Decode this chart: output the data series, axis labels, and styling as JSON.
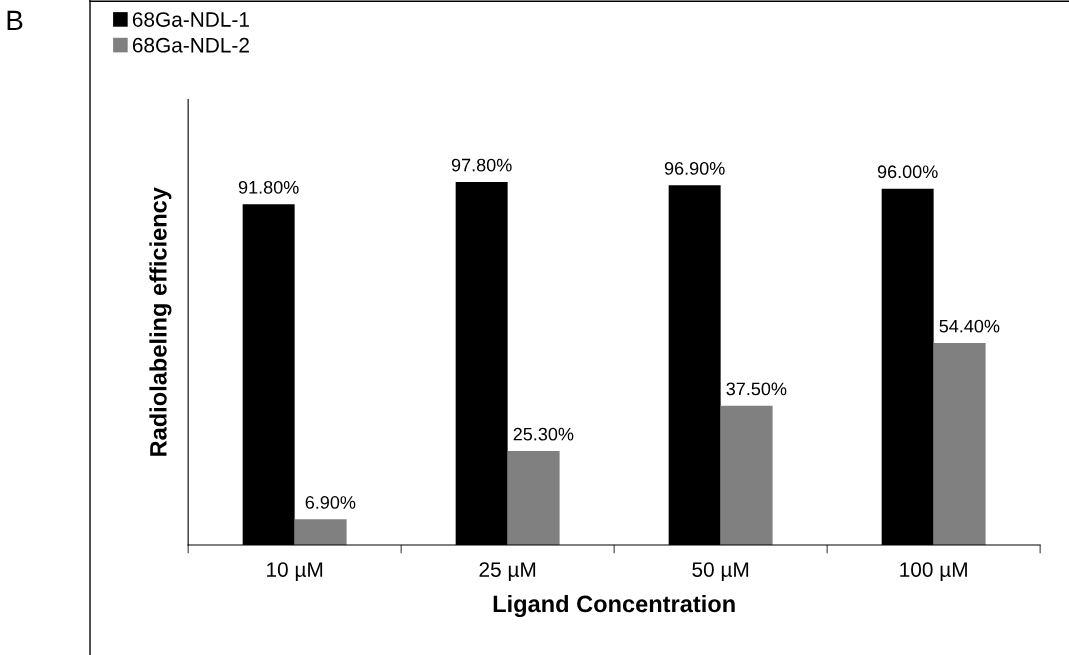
{
  "chart_data": {
    "type": "bar",
    "xlabel": "Ligand Concentration",
    "ylabel": "Radiolabeling efficiency",
    "categories": [
      "10 µM",
      "25 µM",
      "50 µM",
      "100 µM"
    ],
    "series": [
      {
        "name": "68Ga-NDL-1",
        "color": "#000000",
        "values": [
          91.8,
          97.8,
          96.9,
          96.0
        ],
        "value_labels": [
          "91.80%",
          "97.80%",
          "96.90%",
          "96.00%"
        ]
      },
      {
        "name": "68Ga-NDL-2",
        "color": "#808080",
        "values": [
          6.9,
          25.3,
          37.5,
          54.4
        ],
        "value_labels": [
          "6.90%",
          "25.30%",
          "37.50%",
          "54.40%"
        ]
      }
    ],
    "ylim": [
      0,
      120
    ],
    "tick_labels": "x",
    "grid": false,
    "legend": "top left",
    "annotations": [
      "B"
    ]
  }
}
